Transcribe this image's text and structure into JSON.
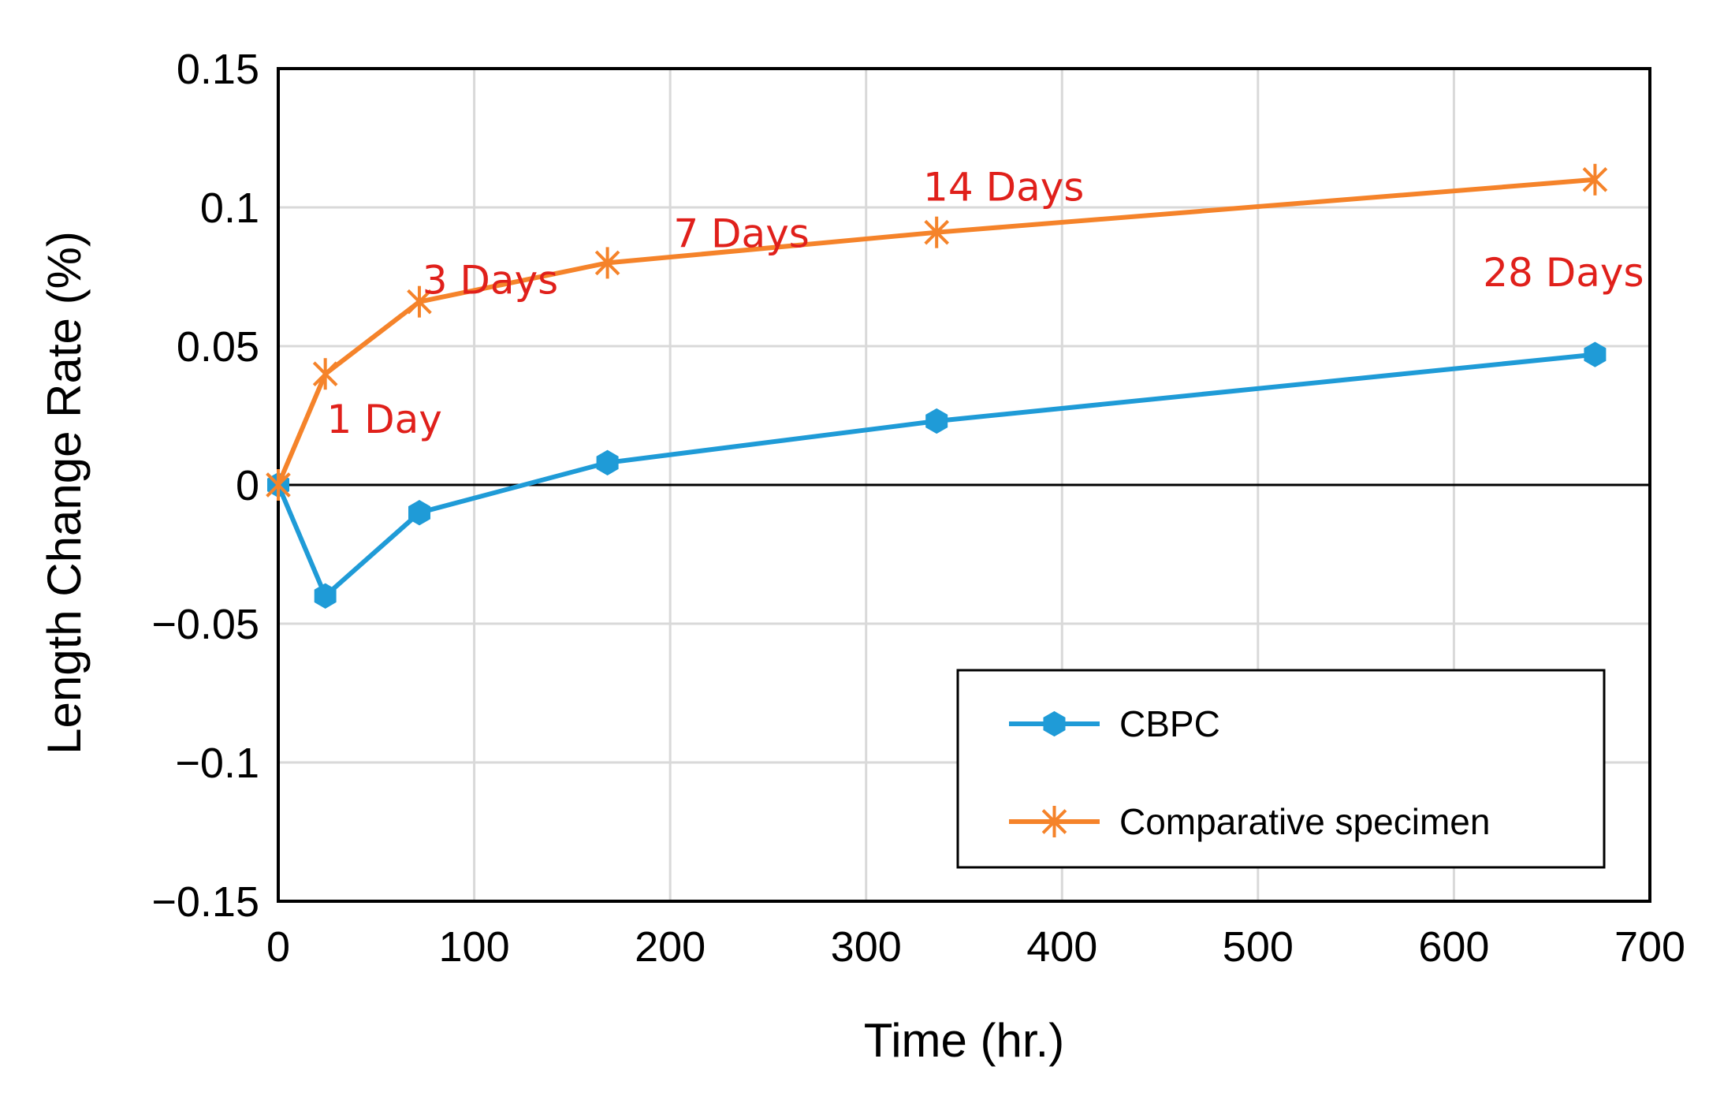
{
  "chart_data": {
    "type": "line",
    "title": "",
    "xlabel": "Time (hr.)",
    "ylabel": "Length Change Rate (%)",
    "xlim": [
      0,
      700
    ],
    "ylim": [
      -0.15,
      0.15
    ],
    "x_ticks": [
      0,
      100,
      200,
      300,
      400,
      500,
      600,
      700
    ],
    "x_tick_labels": [
      "0",
      "100",
      "200",
      "300",
      "400",
      "500",
      "600",
      "700"
    ],
    "y_ticks": [
      0.15,
      0.1,
      0.05,
      0,
      -0.05,
      -0.1,
      -0.15
    ],
    "y_tick_labels": [
      "0.15",
      "0.1",
      "0.05",
      "0",
      "−0.05",
      "−0.1",
      "−0.15"
    ],
    "grid": true,
    "legend_position": "bottom-right",
    "series": [
      {
        "name": "CBPC",
        "color": "#1F9BD7",
        "marker": "filled-hexagon",
        "x": [
          0,
          24,
          72,
          168,
          336,
          672
        ],
        "y": [
          0,
          -0.04,
          -0.01,
          0.008,
          0.023,
          0.047
        ]
      },
      {
        "name": "Comparative specimen",
        "color": "#F5832A",
        "marker": "asterisk",
        "x": [
          0,
          24,
          72,
          168,
          336,
          672
        ],
        "y": [
          0,
          0.04,
          0.066,
          0.08,
          0.091,
          0.11
        ]
      }
    ],
    "annotations": [
      {
        "text": "1 Day",
        "x": 24,
        "y": 0.04,
        "color": "#E0201B"
      },
      {
        "text": "3 Days",
        "x": 72,
        "y": 0.066,
        "color": "#E0201B"
      },
      {
        "text": "7 Days",
        "x": 168,
        "y": 0.08,
        "color": "#E0201B"
      },
      {
        "text": "14 Days",
        "x": 336,
        "y": 0.091,
        "color": "#E0201B"
      },
      {
        "text": "28 Days",
        "x": 672,
        "y": 0.11,
        "color": "#E0201B"
      }
    ]
  }
}
